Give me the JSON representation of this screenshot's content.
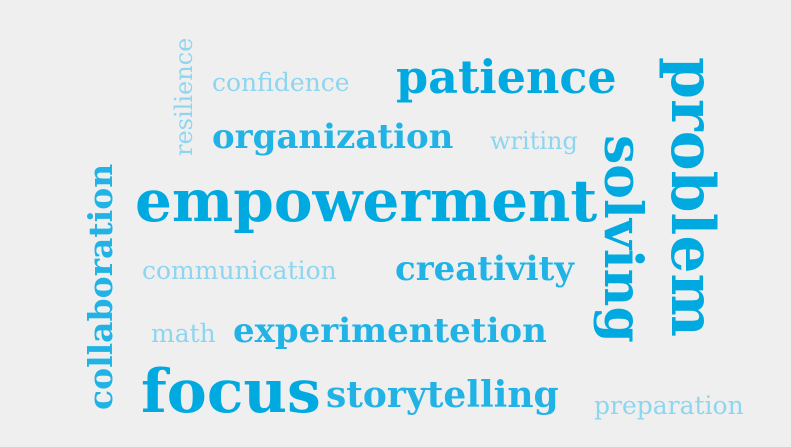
{
  "words": {
    "resilience": "resilience",
    "confidence": "confidence",
    "patience": "patience",
    "organization": "organization",
    "writing": "writing",
    "problem": "problem",
    "solving": "solving",
    "empowerment": "empowerment",
    "collaboration": "collaboration",
    "communication": "communication",
    "creativity": "creativity",
    "math": "math",
    "experimentetion": "experimentetion",
    "focus": "focus",
    "storytelling": "storytelling",
    "preparation": "preparation"
  },
  "colors": {
    "background": "#efefef",
    "strong": "#00a9e0",
    "medium": "#22b3e6",
    "light": "#77cdee",
    "lighter": "#8ed5f0"
  }
}
